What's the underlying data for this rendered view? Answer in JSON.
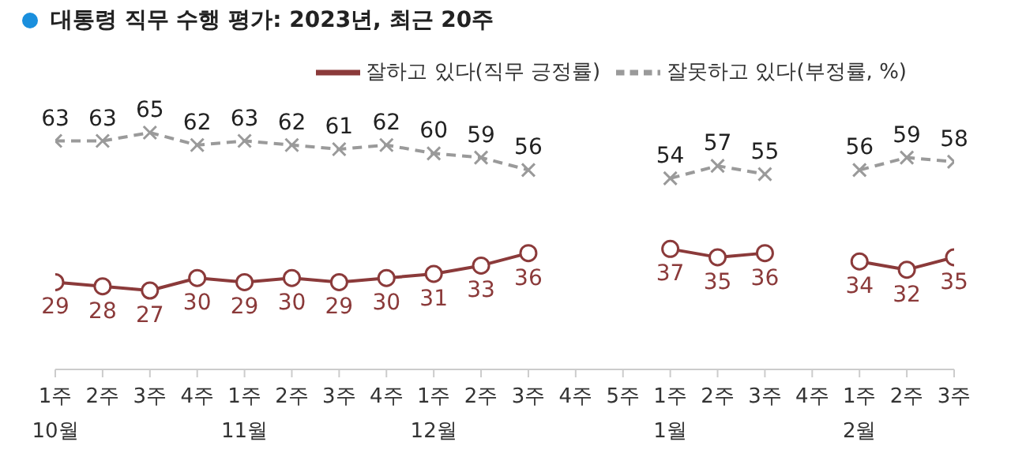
{
  "chart_data": {
    "type": "line",
    "title": "대통령 직무 수행 평가: 2023년, 최근 20주",
    "categories": [
      "1주\n10월",
      "2주",
      "3주",
      "4주",
      "1주\n11월",
      "2주",
      "3주",
      "4주",
      "1주\n12월",
      "2주",
      "3주",
      "4주",
      "5주",
      "1주\n1월",
      "2주",
      "3주",
      "4주",
      "1주\n2월",
      "2주",
      "3주"
    ],
    "series": [
      {
        "name": "잘하고 있다(직무 긍정률)",
        "color": "#8b3a3a",
        "marker": "circle",
        "line_style": "solid",
        "values": [
          29,
          28,
          27,
          30,
          29,
          30,
          29,
          30,
          31,
          33,
          36,
          null,
          null,
          37,
          35,
          36,
          null,
          34,
          32,
          35
        ]
      },
      {
        "name": "잘못하고 있다(부정률, %)",
        "color": "#9a9a9a",
        "marker": "cross",
        "line_style": "dashed",
        "values": [
          63,
          63,
          65,
          62,
          63,
          62,
          61,
          62,
          60,
          59,
          56,
          null,
          null,
          54,
          57,
          55,
          null,
          56,
          59,
          58
        ]
      }
    ],
    "data_labels": true,
    "legend": "top right",
    "grid": false
  }
}
